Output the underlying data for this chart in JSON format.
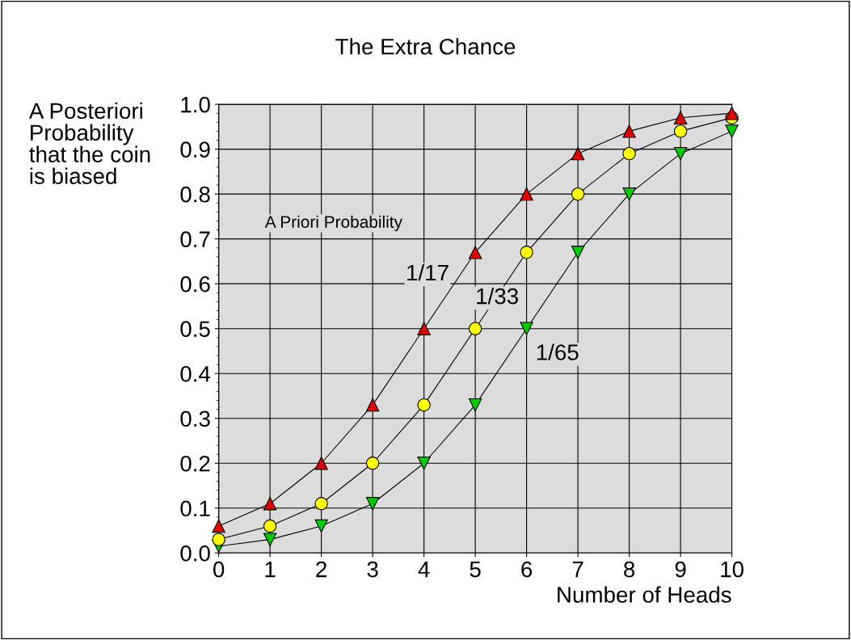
{
  "chart_data": {
    "type": "line",
    "title": "The Extra Chance",
    "xlabel": "Number of Heads",
    "ylabel": "A Posteriori\nProbability\nthat the coin\nis biased",
    "x": [
      0,
      1,
      2,
      3,
      4,
      5,
      6,
      7,
      8,
      9,
      10
    ],
    "series": [
      {
        "name": "1/17",
        "color": "#e00000",
        "marker": "triangle",
        "values": [
          0.06,
          0.11,
          0.2,
          0.33,
          0.5,
          0.67,
          0.8,
          0.89,
          0.94,
          0.97,
          0.98
        ]
      },
      {
        "name": "1/33",
        "color": "#ffff00",
        "marker": "circle",
        "values": [
          0.03,
          0.06,
          0.11,
          0.2,
          0.33,
          0.5,
          0.67,
          0.8,
          0.89,
          0.94,
          0.97
        ]
      },
      {
        "name": "1/65",
        "color": "#00cc00",
        "marker": "triangle_down",
        "values": [
          0.015,
          0.03,
          0.06,
          0.11,
          0.2,
          0.33,
          0.5,
          0.67,
          0.8,
          0.89,
          0.94
        ]
      }
    ],
    "annotations": [
      "A Priori Probability"
    ],
    "xlim": [
      0,
      10
    ],
    "xticks": [
      0,
      1,
      2,
      3,
      4,
      5,
      6,
      7,
      8,
      9,
      10
    ],
    "ylim": [
      0,
      1
    ],
    "yticks": [
      {
        "value": 0,
        "label": "0.0"
      },
      0.1,
      0.2,
      0.3,
      0.4,
      0.5,
      0.6,
      0.7,
      0.8,
      0.9,
      {
        "value": 1,
        "label": "1.0"
      }
    ],
    "grid": true,
    "legend": false
  }
}
